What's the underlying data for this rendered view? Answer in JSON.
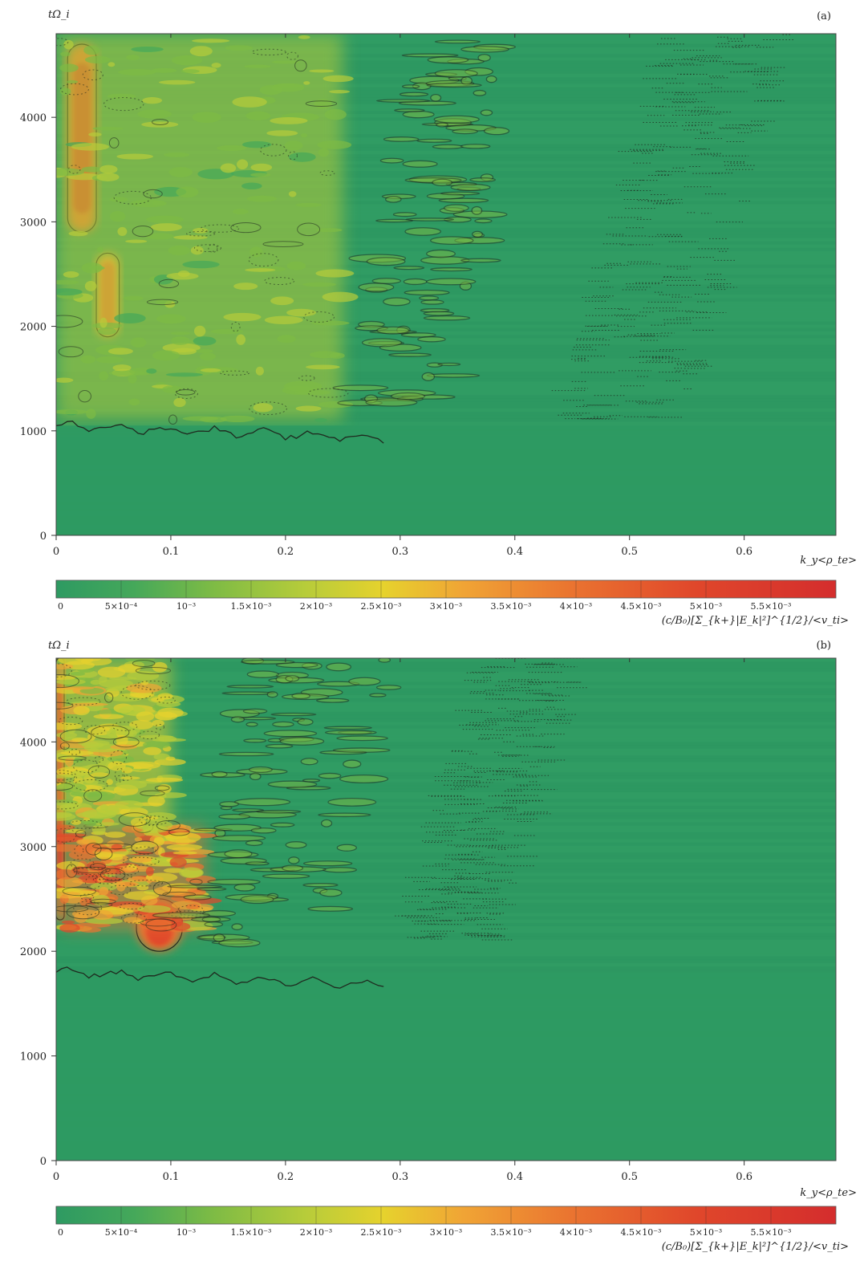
{
  "chart_data": [
    {
      "type": "heatmap",
      "panel_label": "(a)",
      "xlabel": "k_y<ρ_te>",
      "ylabel": "tΩ_i",
      "xlim": [
        0,
        0.68
      ],
      "ylim": [
        0,
        4800
      ],
      "x_ticks": [
        0,
        0.1,
        0.2,
        0.3,
        0.4,
        0.5,
        0.6
      ],
      "x_tick_labels": [
        "0",
        "0.1",
        "0.2",
        "0.3",
        "0.4",
        "0.5",
        "0.6"
      ],
      "y_ticks": [
        0,
        1000,
        2000,
        3000,
        4000
      ],
      "y_tick_labels": [
        "0",
        "1000",
        "2000",
        "3000",
        "4000"
      ],
      "onset_time": 1050,
      "features": [
        {
          "kind": "hot_band",
          "x": [
            0.01,
            0.035
          ],
          "y": [
            2900,
            4700
          ],
          "level": 0.0056
        },
        {
          "kind": "hot_band",
          "x": [
            0.035,
            0.055
          ],
          "y": [
            1900,
            2700
          ],
          "level": 0.0048
        },
        {
          "kind": "warm_region",
          "x": [
            0.0,
            0.25
          ],
          "y": [
            1100,
            4800
          ],
          "level": 0.002
        },
        {
          "kind": "contour_band",
          "x": [
            0.26,
            0.4
          ],
          "y": [
            1200,
            4800
          ],
          "level": 0.001
        },
        {
          "kind": "dotted_band",
          "x": [
            0.44,
            0.64
          ],
          "y": [
            1100,
            4800
          ],
          "level": 0.0005
        }
      ],
      "colorbar": {
        "range": [
          0,
          0.006
        ],
        "ticks": [
          0,
          0.0005,
          0.001,
          0.0015,
          0.002,
          0.0025,
          0.003,
          0.0035,
          0.004,
          0.0045,
          0.005,
          0.0055
        ],
        "tick_labels": [
          "0",
          "5×10⁻⁴",
          "10⁻³",
          "1.5×10⁻³",
          "2×10⁻³",
          "2.5×10⁻³",
          "3×10⁻³",
          "3.5×10⁻³",
          "4×10⁻³",
          "4.5×10⁻³",
          "5×10⁻³",
          "5.5×10⁻³"
        ],
        "label": "(c/B₀)[Σ_{k+}|E_k|²]^{1/2}/<v_ti>"
      }
    },
    {
      "type": "heatmap",
      "panel_label": "(b)",
      "xlabel": "k_y<ρ_te>",
      "ylabel": "tΩ_i",
      "xlim": [
        0,
        0.68
      ],
      "ylim": [
        0,
        4800
      ],
      "x_ticks": [
        0,
        0.1,
        0.2,
        0.3,
        0.4,
        0.5,
        0.6
      ],
      "x_tick_labels": [
        "0",
        "0.1",
        "0.2",
        "0.3",
        "0.4",
        "0.5",
        "0.6"
      ],
      "y_ticks": [
        0,
        1000,
        2000,
        3000,
        4000
      ],
      "y_tick_labels": [
        "0",
        "1000",
        "2000",
        "3000",
        "4000"
      ],
      "onset_time": 1800,
      "features": [
        {
          "kind": "hot_band",
          "x": [
            0.0,
            0.007
          ],
          "y": [
            2300,
            4800
          ],
          "level": 0.006
        },
        {
          "kind": "hot_blob",
          "x": [
            0.07,
            0.11
          ],
          "y": [
            2000,
            2500
          ],
          "level": 0.0055
        },
        {
          "kind": "hot_region",
          "x": [
            0.005,
            0.13
          ],
          "y": [
            2200,
            3200
          ],
          "level": 0.0045
        },
        {
          "kind": "warm_region",
          "x": [
            0.0,
            0.1
          ],
          "y": [
            3200,
            4800
          ],
          "level": 0.003
        },
        {
          "kind": "contour_band",
          "x": [
            0.1,
            0.3
          ],
          "y": [
            2000,
            4800
          ],
          "level": 0.001
        },
        {
          "kind": "dotted_band",
          "x": [
            0.3,
            0.46
          ],
          "y": [
            2100,
            4800
          ],
          "level": 0.0005
        }
      ],
      "colorbar": {
        "range": [
          0,
          0.006
        ],
        "ticks": [
          0,
          0.0005,
          0.001,
          0.0015,
          0.002,
          0.0025,
          0.003,
          0.0035,
          0.004,
          0.0045,
          0.005,
          0.0055
        ],
        "tick_labels": [
          "0",
          "5×10⁻⁴",
          "10⁻³",
          "1.5×10⁻³",
          "2×10⁻³",
          "2.5×10⁻³",
          "3×10⁻³",
          "3.5×10⁻³",
          "4×10⁻³",
          "4.5×10⁻³",
          "5×10⁻³",
          "5.5×10⁻³"
        ],
        "label": "(c/B₀)[Σ_{k+}|E_k|²]^{1/2}/<v_ti>"
      }
    }
  ],
  "colors": {
    "base": "#2e9a62",
    "scale": [
      "#2e9a62",
      "#45a85a",
      "#7dbb45",
      "#b7cc3a",
      "#e6d22d",
      "#f0a535",
      "#ea7430",
      "#e0472b",
      "#d42d2d"
    ],
    "contour": "#1f2a1f"
  }
}
